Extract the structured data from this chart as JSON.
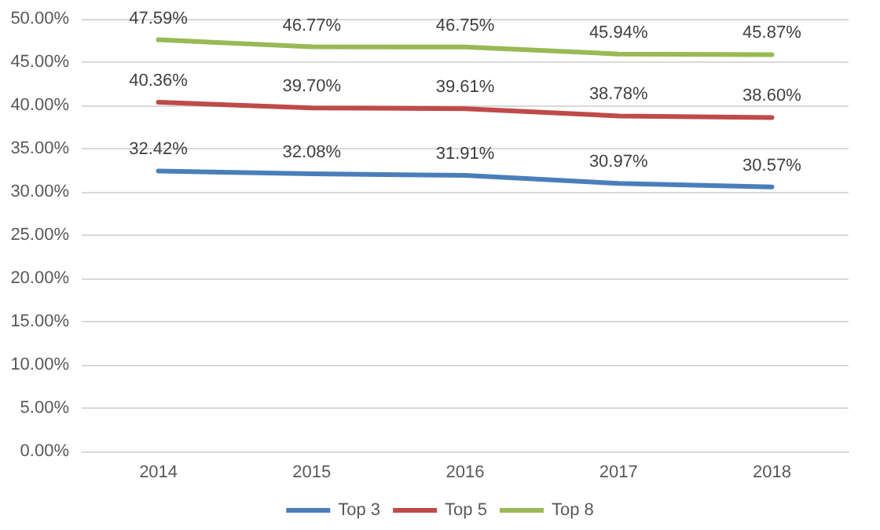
{
  "chart_data": {
    "type": "line",
    "categories": [
      "2014",
      "2015",
      "2016",
      "2017",
      "2018"
    ],
    "series": [
      {
        "name": "Top 3",
        "color": "#4a7ebb",
        "values": [
          32.42,
          32.08,
          31.91,
          30.97,
          30.57
        ],
        "value_labels": [
          "32.42%",
          "32.08%",
          "31.91%",
          "30.97%",
          "30.57%"
        ]
      },
      {
        "name": "Top 5",
        "color": "#be4b48",
        "values": [
          40.36,
          39.7,
          39.61,
          38.78,
          38.6
        ],
        "value_labels": [
          "40.36%",
          "39.70%",
          "39.61%",
          "38.78%",
          "38.60%"
        ]
      },
      {
        "name": "Top 8",
        "color": "#98b954",
        "values": [
          47.59,
          46.77,
          46.75,
          45.94,
          45.87
        ],
        "value_labels": [
          "47.59%",
          "46.77%",
          "46.75%",
          "45.94%",
          "45.87%"
        ]
      }
    ],
    "ylim": [
      0,
      50
    ],
    "yticks": [
      {
        "value": 0,
        "label": "0.00%"
      },
      {
        "value": 5,
        "label": "5.00%"
      },
      {
        "value": 10,
        "label": "10.00%"
      },
      {
        "value": 15,
        "label": "15.00%"
      },
      {
        "value": 20,
        "label": "20.00%"
      },
      {
        "value": 25,
        "label": "25.00%"
      },
      {
        "value": 30,
        "label": "30.00%"
      },
      {
        "value": 35,
        "label": "35.00%"
      },
      {
        "value": 40,
        "label": "40.00%"
      },
      {
        "value": 45,
        "label": "45.00%"
      },
      {
        "value": 50,
        "label": "50.00%"
      }
    ],
    "grid": "y",
    "legend": "bottom",
    "marker": "none",
    "line_style": "solid"
  }
}
